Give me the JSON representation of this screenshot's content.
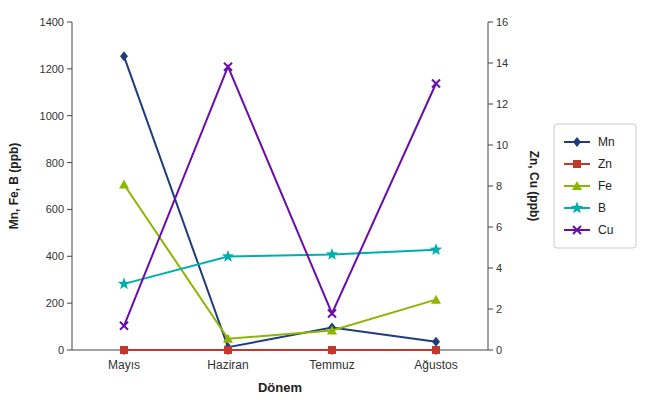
{
  "chart_data": {
    "type": "line",
    "categories": [
      "Mayıs",
      "Haziran",
      "Temmuz",
      "Ağustos"
    ],
    "series": [
      {
        "name": "Mn",
        "color": "#1F3D7A",
        "marker": "diamond",
        "values": [
          1253.42,
          11.89,
          95.87,
          35.0
        ]
      },
      {
        "name": "Zn",
        "color": "#C0392B",
        "marker": "square",
        "axis": "y2",
        "values": [
          0,
          0,
          0,
          0
        ]
      },
      {
        "name": "Fe",
        "color": "#8DB600",
        "marker": "triangle",
        "values": [
          706.64,
          47.73,
          83.08,
          215.0
        ]
      },
      {
        "name": "B",
        "color": "#00AEAE",
        "marker": "star",
        "values": [
          282.26,
          398.97,
          407.54,
          428.0
        ]
      },
      {
        "name": "Cu",
        "color": "#6A0DAD",
        "marker": "x",
        "axis": "y2",
        "values": [
          1.18,
          13.82,
          1.78,
          13.0
        ]
      }
    ],
    "xlabel": "Dönem",
    "ylabel": "Mn, Fe, B (ppb)",
    "y2label": "Zn, Cu (ppb)",
    "ylim": [
      0,
      1400
    ],
    "yticks": [
      0,
      200,
      400,
      600,
      800,
      1000,
      1200,
      1400
    ],
    "y2lim": [
      0,
      16
    ],
    "y2ticks": [
      0,
      2,
      4,
      6,
      8,
      10,
      12,
      14,
      16
    ],
    "grid": false,
    "legend": "right"
  }
}
